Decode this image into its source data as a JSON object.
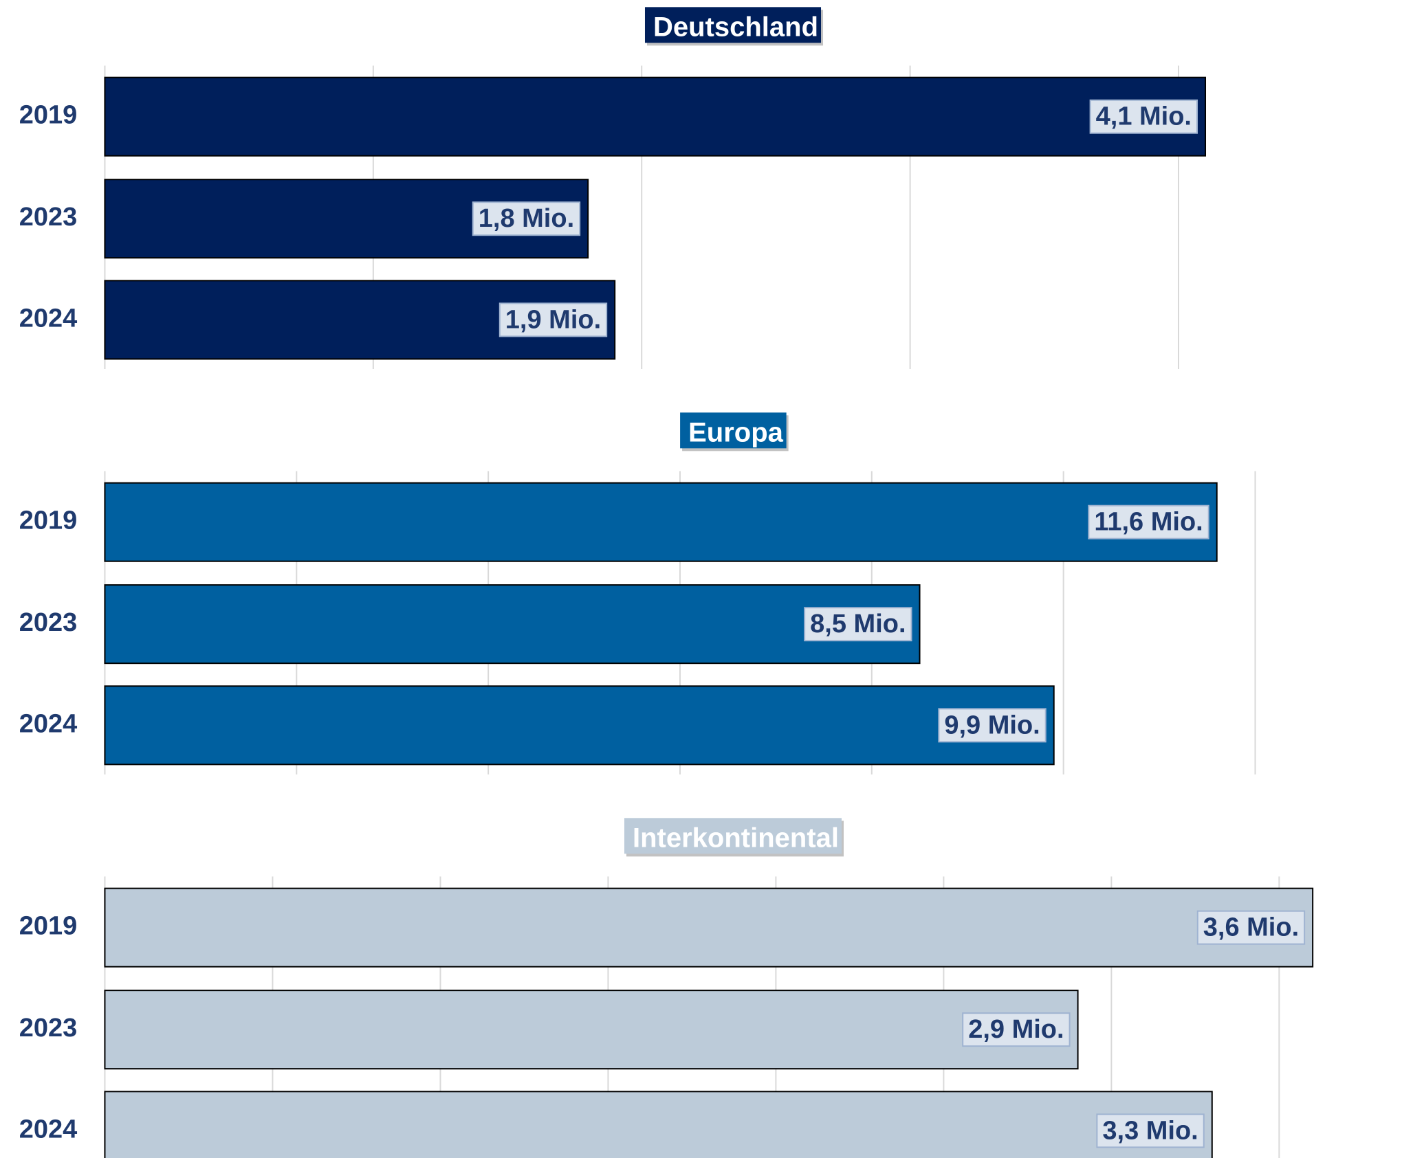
{
  "chart_data": [
    {
      "type": "bar",
      "orientation": "horizontal",
      "title": "Deutschland",
      "categories": [
        "2019",
        "2023",
        "2024"
      ],
      "values": [
        4.1,
        1.8,
        1.9
      ],
      "value_labels": [
        "4,1 Mio.",
        "1,8 Mio.",
        "1,9 Mio."
      ],
      "color": "#001f5b",
      "xlim": [
        0,
        4.5
      ],
      "xticks": [
        0,
        1,
        2,
        3,
        4
      ],
      "grid": true
    },
    {
      "type": "bar",
      "orientation": "horizontal",
      "title": "Europa",
      "categories": [
        "2019",
        "2023",
        "2024"
      ],
      "values": [
        11.6,
        8.5,
        9.9
      ],
      "value_labels": [
        "11,6 Mio.",
        "8,5 Mio.",
        "9,9 Mio."
      ],
      "color": "#0060a0",
      "xlim": [
        0,
        12.6
      ],
      "xticks": [
        0,
        2,
        4,
        6,
        8,
        10,
        12
      ],
      "grid": true
    },
    {
      "type": "bar",
      "orientation": "horizontal",
      "title": "Interkontinental",
      "categories": [
        "2019",
        "2023",
        "2024"
      ],
      "values": [
        3.6,
        2.9,
        3.3
      ],
      "value_labels": [
        "3,6 Mio.",
        "2,9 Mio.",
        "3,3 Mio."
      ],
      "color": "#bccbd9",
      "xlim": [
        0,
        3.6
      ],
      "xticks": [
        0,
        0.5,
        1,
        1.5,
        2,
        2.5,
        3,
        3.5
      ],
      "grid": true
    }
  ]
}
